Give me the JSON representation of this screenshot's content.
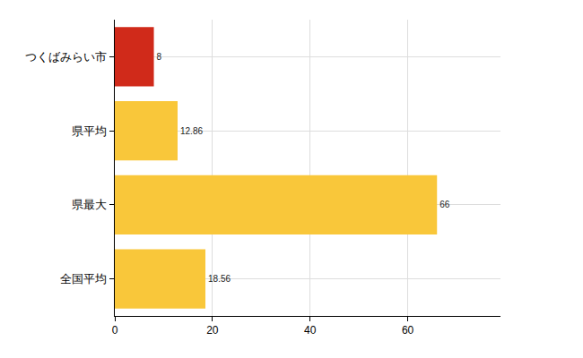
{
  "chart_data": {
    "type": "bar",
    "orientation": "horizontal",
    "categories": [
      "つくばみらい市",
      "県平均",
      "県最大",
      "全国平均"
    ],
    "values": [
      8,
      12.86,
      66,
      18.56
    ],
    "colors": [
      "#d02a1a",
      "#f9c73a",
      "#f9c73a",
      "#f9c73a"
    ],
    "xlim": [
      0,
      79
    ],
    "xticks": [
      0,
      20,
      40,
      60
    ],
    "grid": true,
    "data_labels": true
  }
}
